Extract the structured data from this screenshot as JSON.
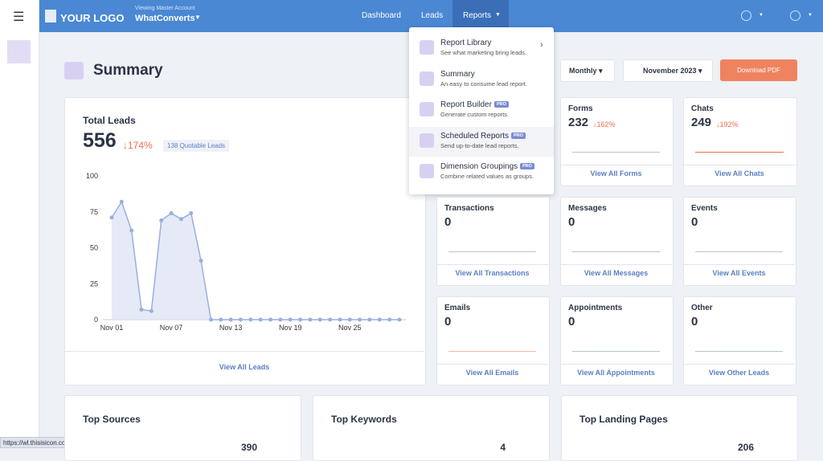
{
  "header": {
    "logo": "YOUR LOGO",
    "account_caption": "Viewing Master Account",
    "account_name": "WhatConverts",
    "nav": [
      "Dashboard",
      "Leads",
      "Reports"
    ]
  },
  "menu": {
    "items": [
      {
        "title": "Report Library",
        "desc": "See what marketing bring leads."
      },
      {
        "title": "Summary",
        "desc": "An easy to consume lead report."
      },
      {
        "title": "Report Builder",
        "desc": "Generate custom reports.",
        "badge": "PRO"
      },
      {
        "title": "Scheduled Reports",
        "desc": "Send up-to-date lead reports.",
        "badge": "PRO"
      },
      {
        "title": "Dimension Groupings",
        "desc": "Combine related values as groups.",
        "badge": "PRO"
      }
    ]
  },
  "page": {
    "title": "Summary",
    "period": "Monthly",
    "month": "November 2023",
    "download": "Download PDF"
  },
  "total_leads": {
    "title": "Total Leads",
    "value": 556,
    "change": "↓174%",
    "quotable": "138 Quotable Leads",
    "link": "View All Leads"
  },
  "chart_data": {
    "type": "line",
    "color": "#9aaee0",
    "categories": [
      "Nov 01",
      null,
      null,
      null,
      null,
      null,
      "Nov 07",
      null,
      null,
      null,
      null,
      null,
      "Nov 13",
      null,
      null,
      null,
      null,
      null,
      "Nov 19",
      null,
      null,
      null,
      null,
      null,
      "Nov 25",
      null,
      null,
      null,
      null,
      null
    ],
    "values": [
      71,
      82,
      62,
      7,
      6,
      69,
      74,
      70,
      74,
      41,
      0,
      0,
      0,
      0,
      0,
      0,
      0,
      0,
      0,
      0,
      0,
      0,
      0,
      0,
      0,
      0,
      0,
      0,
      0,
      0
    ],
    "ylim": [
      0,
      100
    ],
    "yticks": [
      0,
      25,
      50,
      75,
      100
    ]
  },
  "cards": [
    {
      "title": "Forms",
      "value": 232,
      "change": "↓162%",
      "link": "View All Forms"
    },
    {
      "title": "Chats",
      "value": 249,
      "change": "↓192%",
      "link": "View All Chats"
    },
    {
      "title": "Transactions",
      "value": 0,
      "link": "View All Transactions"
    },
    {
      "title": "Messages",
      "value": 0,
      "link": "View All Messages"
    },
    {
      "title": "Events",
      "value": 0,
      "link": "View All Events"
    },
    {
      "title": "Emails",
      "value": 0,
      "link": "View All Emails"
    },
    {
      "title": "Appointments",
      "value": 0,
      "link": "View All Appointments"
    },
    {
      "title": "Other",
      "value": 0,
      "link": "View Other Leads"
    }
  ],
  "bottom": [
    {
      "title": "Top Sources",
      "value": 390
    },
    {
      "title": "Top Keywords",
      "value": 4
    },
    {
      "title": "Top Landing Pages",
      "value": 206
    }
  ],
  "status_url": "https://wl.thisisicon.com/scheduled-reports"
}
